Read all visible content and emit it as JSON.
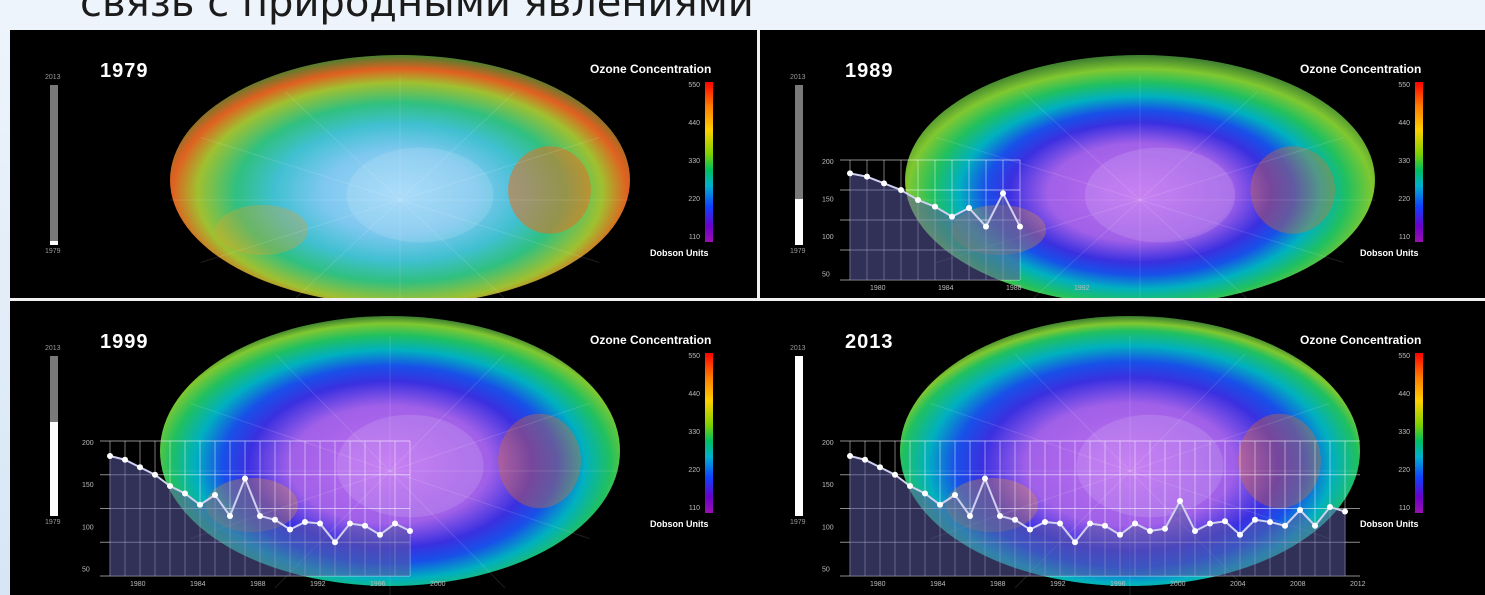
{
  "header": {
    "title": "связь с природными явлениями"
  },
  "legend": {
    "title": "Ozone Concentration",
    "unit": "Dobson Units",
    "ticks": [
      "550",
      "440",
      "330",
      "220",
      "110"
    ]
  },
  "timeline": {
    "start": "1979",
    "end": "2013"
  },
  "graph": {
    "y_ticks": [
      "200",
      "150",
      "100",
      "50"
    ],
    "x_ticks": [
      "1980",
      "1984",
      "1988",
      "1992",
      "1996",
      "2000",
      "2004",
      "2008",
      "2012"
    ]
  },
  "panels": [
    {
      "year": "1979",
      "timeline_progress": 0.0
    },
    {
      "year": "1989",
      "timeline_progress": 0.29
    },
    {
      "year": "1999",
      "timeline_progress": 0.59
    },
    {
      "year": "2013",
      "timeline_progress": 1.0
    }
  ],
  "colors": {
    "bg": "#000000",
    "divider": "#f0f0f0"
  }
}
